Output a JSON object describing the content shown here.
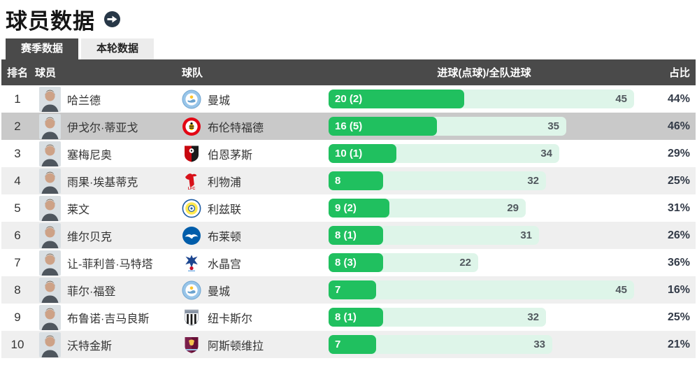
{
  "header": {
    "title": "球员数据",
    "arrow_icon": "circle-arrow-right-icon"
  },
  "tabs": [
    {
      "label": "赛季数据",
      "active": true
    },
    {
      "label": "本轮数据",
      "active": false
    }
  ],
  "table": {
    "columns": {
      "rank": "排名",
      "player": "球员",
      "team": "球队",
      "goals": "进球(点球)/全队进球",
      "share": "占比"
    },
    "bar_scale_max": 45,
    "rows": [
      {
        "rank": 1,
        "player": "哈兰德",
        "team": "曼城",
        "badge": "man-city",
        "goals": 20,
        "goals_label": "20 (2)",
        "team_total": 45,
        "share": "44%",
        "highlighted": false
      },
      {
        "rank": 2,
        "player": "伊戈尔·蒂亚戈",
        "team": "布伦特福德",
        "badge": "brentford",
        "goals": 16,
        "goals_label": "16 (5)",
        "team_total": 35,
        "share": "46%",
        "highlighted": true
      },
      {
        "rank": 3,
        "player": "塞梅尼奥",
        "team": "伯恩茅斯",
        "badge": "bournemouth",
        "goals": 10,
        "goals_label": "10 (1)",
        "team_total": 34,
        "share": "29%",
        "highlighted": false
      },
      {
        "rank": 4,
        "player": "雨果·埃基蒂克",
        "team": "利物浦",
        "badge": "liverpool",
        "goals": 8,
        "goals_label": "8",
        "team_total": 32,
        "share": "25%",
        "highlighted": false
      },
      {
        "rank": 5,
        "player": "莱文",
        "team": "利兹联",
        "badge": "leeds",
        "goals": 9,
        "goals_label": "9 (2)",
        "team_total": 29,
        "share": "31%",
        "highlighted": false
      },
      {
        "rank": 6,
        "player": "维尔贝克",
        "team": "布莱顿",
        "badge": "brighton",
        "goals": 8,
        "goals_label": "8 (1)",
        "team_total": 31,
        "share": "26%",
        "highlighted": false
      },
      {
        "rank": 7,
        "player": "让-菲利普·马特塔",
        "team": "水晶宫",
        "badge": "crystal-palace",
        "goals": 8,
        "goals_label": "8 (3)",
        "team_total": 22,
        "share": "36%",
        "highlighted": false
      },
      {
        "rank": 8,
        "player": "菲尔·福登",
        "team": "曼城",
        "badge": "man-city",
        "goals": 7,
        "goals_label": "7",
        "team_total": 45,
        "share": "16%",
        "highlighted": false
      },
      {
        "rank": 9,
        "player": "布鲁诺·吉马良斯",
        "team": "纽卡斯尔",
        "badge": "newcastle",
        "goals": 8,
        "goals_label": "8 (1)",
        "team_total": 32,
        "share": "25%",
        "highlighted": false
      },
      {
        "rank": 10,
        "player": "沃特金斯",
        "team": "阿斯顿维拉",
        "badge": "aston-villa",
        "goals": 7,
        "goals_label": "7",
        "team_total": 33,
        "share": "21%",
        "highlighted": false
      }
    ]
  },
  "colors": {
    "accent_green": "#20c05f",
    "bar_track_mint": "#def5e9",
    "header_bg": "#4a4a4a",
    "row_stripe": "#efefef",
    "row_highlight": "#c9c9c9",
    "share_text": "#333b48"
  }
}
